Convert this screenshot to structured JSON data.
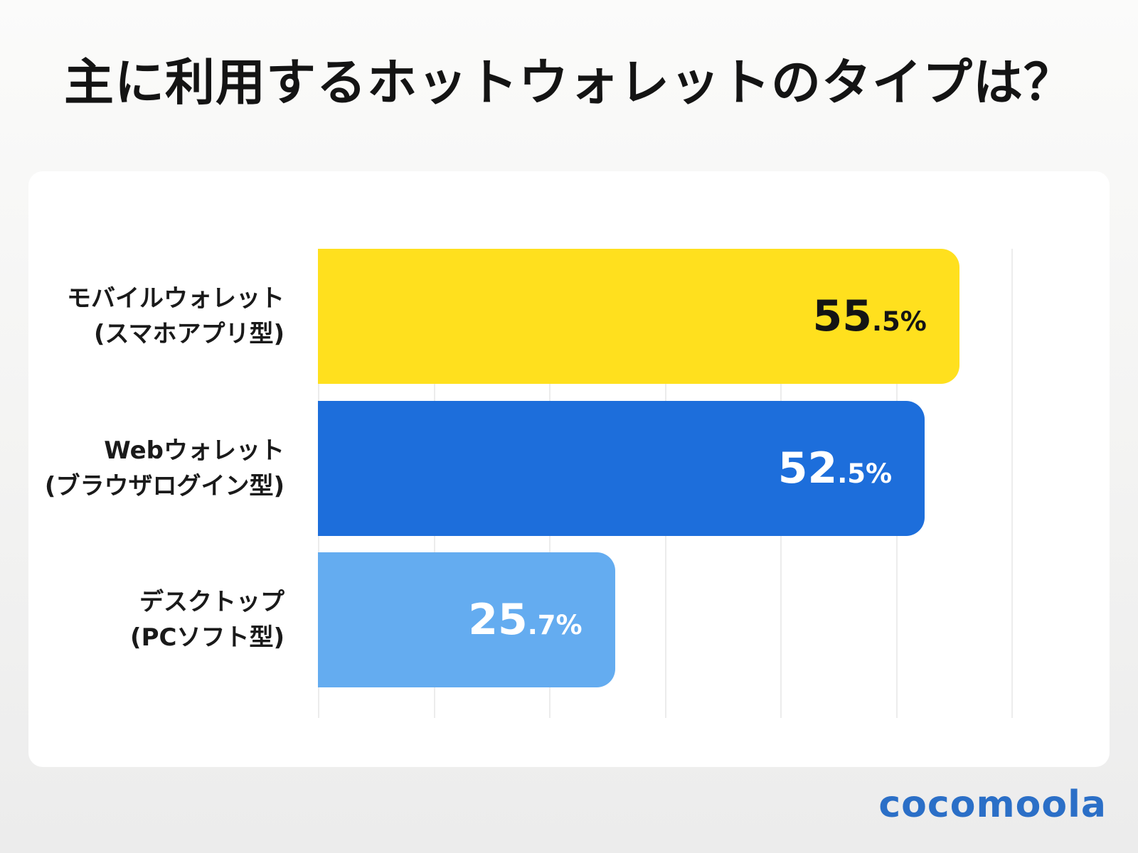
{
  "title": "主に利用するホットウォレットのタイプは？",
  "logo_text": "cocomoola",
  "colors": {
    "background_top": "#fbfbfa",
    "background_bottom": "#ececec",
    "card": "#ffffff",
    "title_text": "#141414",
    "label_text": "#1a1a1a",
    "gridline": "#ececec",
    "logo_blue": "#2b6fc7"
  },
  "chart_data": {
    "type": "bar",
    "orientation": "horizontal",
    "title": "主に利用するホットウォレットのタイプは？",
    "categories": [
      "モバイルウォレット (スマホアプリ型)",
      "Webウォレット (ブラウザログイン型)",
      "デスクトップ (PCソフト型)"
    ],
    "category_lines": [
      [
        "モバイルウォレット",
        "(スマホアプリ型)"
      ],
      [
        "Webウォレット",
        "(ブラウザログイン型)"
      ],
      [
        "デスクトップ",
        "(PCソフト型)"
      ]
    ],
    "values": [
      55.5,
      52.5,
      25.7
    ],
    "value_labels": [
      "55.5%",
      "52.5%",
      "25.7%"
    ],
    "bar_colors": [
      "#ffe01e",
      "#1d6edb",
      "#64acf0"
    ],
    "value_text_colors": [
      "#141414",
      "#ffffff",
      "#ffffff"
    ],
    "xlabel": "",
    "ylabel": "",
    "xlim": [
      0,
      60
    ],
    "gridline_interval": 10,
    "grid": true,
    "legend": false
  }
}
